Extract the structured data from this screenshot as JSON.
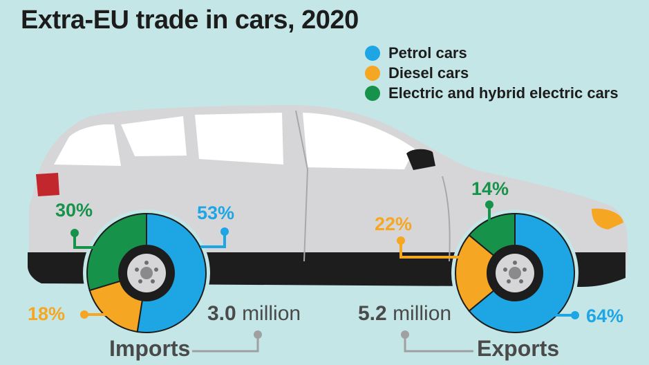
{
  "title": "Extra-EU trade in cars, 2020",
  "colors": {
    "petrol": "#1ea6e4",
    "diesel": "#f5a623",
    "electric": "#17924a",
    "background": "#c4e6e6",
    "car_body": "#d6d6d8"
  },
  "legend": [
    {
      "label": "Petrol cars",
      "color_key": "petrol"
    },
    {
      "label": "Diesel cars",
      "color_key": "diesel"
    },
    {
      "label": "Electric and hybrid electric cars",
      "color_key": "electric"
    }
  ],
  "imports": {
    "label": "Imports",
    "total_value": "3.0",
    "total_unit": "million",
    "petrol_label": "53%",
    "diesel_label": "18%",
    "electric_label": "30%"
  },
  "exports": {
    "label": "Exports",
    "total_value": "5.2",
    "total_unit": "million",
    "petrol_label": "64%",
    "diesel_label": "22%",
    "electric_label": "14%"
  },
  "chart_data": [
    {
      "type": "pie",
      "title": "Imports",
      "total": "3.0 million",
      "categories": [
        "Petrol cars",
        "Diesel cars",
        "Electric and hybrid electric cars"
      ],
      "values": [
        53,
        18,
        30
      ],
      "unit": "%"
    },
    {
      "type": "pie",
      "title": "Exports",
      "total": "5.2 million",
      "categories": [
        "Petrol cars",
        "Diesel cars",
        "Electric and hybrid electric cars"
      ],
      "values": [
        64,
        22,
        14
      ],
      "unit": "%"
    }
  ]
}
